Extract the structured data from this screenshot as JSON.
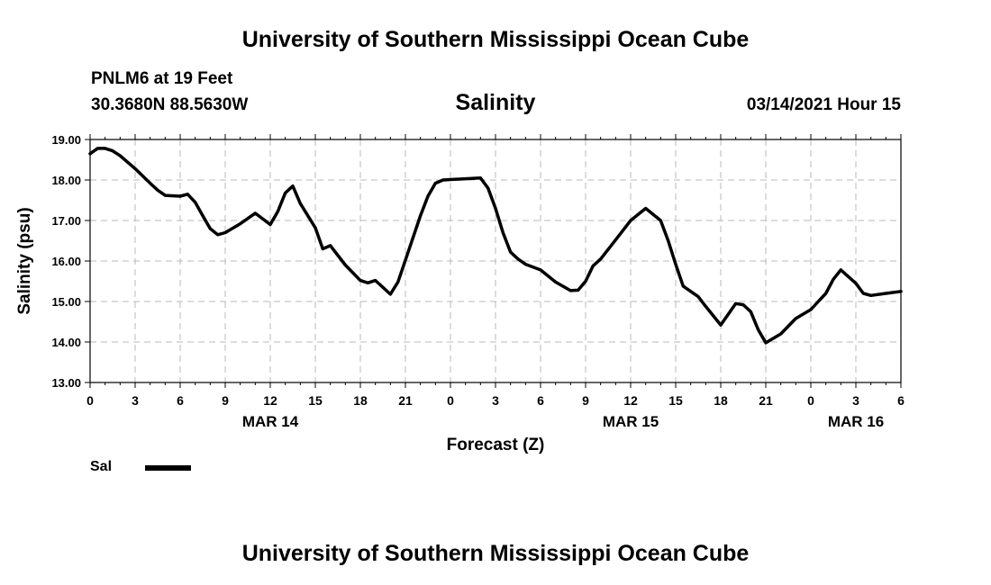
{
  "header": {
    "title_top": "University of Southern Mississippi Ocean Cube",
    "station": "PNLM6 at 19 Feet",
    "coords": "30.3680N 88.5630W",
    "variable": "Salinity",
    "datetime": "03/14/2021 Hour 15"
  },
  "footer": {
    "title_bottom": "University of Southern Mississippi Ocean Cube"
  },
  "legend": {
    "label": "Sal",
    "color": "#000000"
  },
  "chart_data": {
    "type": "line",
    "title": "Salinity",
    "xlabel": "Forecast (Z)",
    "ylabel": "Salinity (psu)",
    "xlim": [
      0,
      54
    ],
    "ylim": [
      13,
      19
    ],
    "yticks": [
      "13.00",
      "14.00",
      "15.00",
      "16.00",
      "17.00",
      "18.00",
      "19.00"
    ],
    "xtick_labels": [
      "0",
      "3",
      "6",
      "9",
      "12",
      "15",
      "18",
      "21",
      "0",
      "3",
      "6",
      "9",
      "12",
      "15",
      "18",
      "21",
      "0",
      "3",
      "6"
    ],
    "date_labels": [
      {
        "label": "MAR 14",
        "at": 12
      },
      {
        "label": "MAR 15",
        "at": 36
      },
      {
        "label": "MAR 16",
        "at": 51
      }
    ],
    "grid": true,
    "series": [
      {
        "name": "Sal",
        "color": "#000000",
        "x": [
          0,
          0.5,
          1,
          1.5,
          2,
          3,
          4,
          4.5,
          5,
          6,
          6.5,
          7,
          7.5,
          8,
          8.5,
          9,
          10,
          11,
          12,
          12.5,
          13,
          13.5,
          14,
          15,
          15.5,
          16,
          17,
          18,
          18.5,
          19,
          20,
          20.5,
          21,
          22,
          22.5,
          23,
          23.5,
          24,
          25,
          26,
          26.5,
          27,
          27.5,
          28,
          28.5,
          29,
          30,
          31,
          32,
          32.5,
          33,
          33.5,
          34,
          35,
          36,
          37,
          38,
          38.5,
          39,
          39.5,
          40,
          40.5,
          41,
          42,
          43,
          43.5,
          44,
          44.5,
          45,
          46,
          47,
          48,
          48.5,
          49,
          49.5,
          50,
          51,
          51.5,
          52,
          53,
          54
        ],
        "values": [
          18.65,
          18.78,
          18.78,
          18.72,
          18.6,
          18.28,
          17.92,
          17.75,
          17.62,
          17.6,
          17.65,
          17.45,
          17.12,
          16.8,
          16.65,
          16.7,
          16.92,
          17.18,
          16.9,
          17.22,
          17.68,
          17.85,
          17.42,
          16.82,
          16.3,
          16.38,
          15.9,
          15.52,
          15.46,
          15.52,
          15.18,
          15.48,
          16.02,
          17.12,
          17.6,
          17.92,
          18.0,
          18.01,
          18.03,
          18.05,
          17.8,
          17.3,
          16.7,
          16.22,
          16.05,
          15.92,
          15.78,
          15.48,
          15.27,
          15.28,
          15.5,
          15.88,
          16.05,
          16.52,
          17.0,
          17.3,
          17.0,
          16.5,
          15.92,
          15.38,
          15.25,
          15.12,
          14.88,
          14.42,
          14.95,
          14.92,
          14.75,
          14.3,
          13.98,
          14.2,
          14.58,
          14.8,
          15.0,
          15.2,
          15.55,
          15.78,
          15.45,
          15.2,
          15.15,
          15.2,
          15.25
        ]
      }
    ]
  }
}
